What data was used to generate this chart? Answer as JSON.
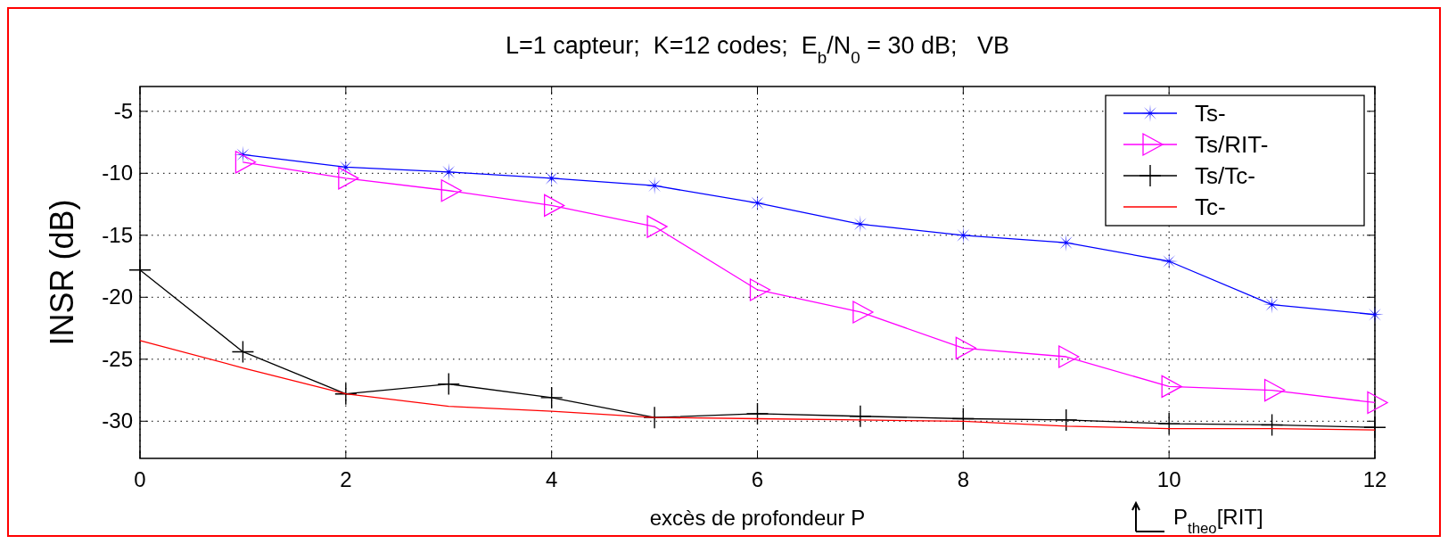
{
  "chart_data": {
    "type": "line",
    "title": "L=1 capteur;  K=12 codes;  E$_{b}$/N$_{0}$ = 30 dB;   VB",
    "xlabel": "excès de profondeur  P",
    "ylabel": "INSR (dB)",
    "x": [
      0,
      1,
      2,
      3,
      4,
      5,
      6,
      7,
      8,
      9,
      10,
      11,
      12
    ],
    "series": [
      {
        "name": "Ts-",
        "color": "#0000ff",
        "marker": "star",
        "values": [
          null,
          -8.5,
          -9.5,
          -9.9,
          -10.4,
          -11,
          -12.4,
          -14.1,
          -15,
          -15.6,
          -17.1,
          -20.6,
          -21.4
        ]
      },
      {
        "name": "Ts/RIT-",
        "color": "#ff00ff",
        "marker": "triangle",
        "values": [
          null,
          -9.1,
          -10.4,
          -11.4,
          -12.6,
          -14.3,
          -19.4,
          -21.2,
          -24.1,
          -24.8,
          -27.2,
          -27.5,
          -28.5
        ]
      },
      {
        "name": "Ts/Tc-",
        "color": "#000000",
        "marker": "cross",
        "values": [
          -17.8,
          -24.4,
          -27.8,
          -27,
          -28.1,
          -29.7,
          -29.4,
          -29.6,
          -29.8,
          -29.9,
          -30.2,
          -30.3,
          -30.5
        ]
      },
      {
        "name": "Tc-",
        "color": "#ff0000",
        "marker": "none",
        "values": [
          -23.5,
          -25.7,
          -27.8,
          -28.8,
          -29.2,
          -29.7,
          -29.8,
          -29.9,
          -30,
          -30.4,
          -30.6,
          -30.6,
          -30.7
        ]
      }
    ],
    "xlim": [
      0,
      12
    ],
    "xticks": [
      0,
      2,
      4,
      6,
      8,
      10,
      12
    ],
    "ylim": [
      -33,
      -3
    ],
    "yticks": [
      -5,
      -10,
      -15,
      -20,
      -25,
      -30
    ],
    "grid": true,
    "legend": "top right",
    "line_style": "solid",
    "annotations": [
      "P$_{theo}$[RIT]"
    ]
  }
}
